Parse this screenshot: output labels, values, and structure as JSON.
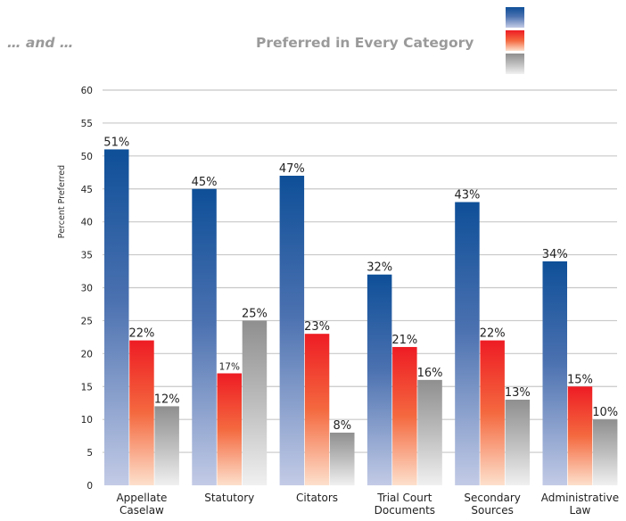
{
  "intro_text": "… and …",
  "chart_data": {
    "type": "bar",
    "title": "Preferred in Every Category",
    "ylabel": "Percent Preferred",
    "xlabel": "",
    "ylim": [
      0,
      60
    ],
    "yticks": [
      0,
      5,
      10,
      15,
      20,
      25,
      30,
      35,
      40,
      45,
      50,
      55,
      60
    ],
    "grid": true,
    "legend_position": "top-right",
    "categories": [
      [
        "Appellate",
        "Caselaw"
      ],
      [
        "Statutory"
      ],
      [
        "Citators"
      ],
      [
        "Trial Court",
        "Documents"
      ],
      [
        "Secondary",
        "Sources"
      ],
      [
        "Administrative",
        "Law"
      ]
    ],
    "series": [
      {
        "color": "#0e4f98",
        "values": [
          51,
          45,
          47,
          32,
          43,
          34
        ],
        "labels": [
          "51%",
          "45%",
          "47%",
          "32%",
          "43%",
          "34%"
        ]
      },
      {
        "color": "#ee1c24",
        "values": [
          22,
          17,
          23,
          21,
          22,
          15
        ],
        "labels": [
          "22%",
          "17%",
          "23%",
          "21%",
          "22%",
          "15%"
        ]
      },
      {
        "color": "#909090",
        "values": [
          12,
          25,
          8,
          16,
          13,
          10
        ],
        "labels": [
          "12%",
          "25%",
          "8%",
          "16%",
          "13%",
          "10%"
        ]
      }
    ]
  }
}
